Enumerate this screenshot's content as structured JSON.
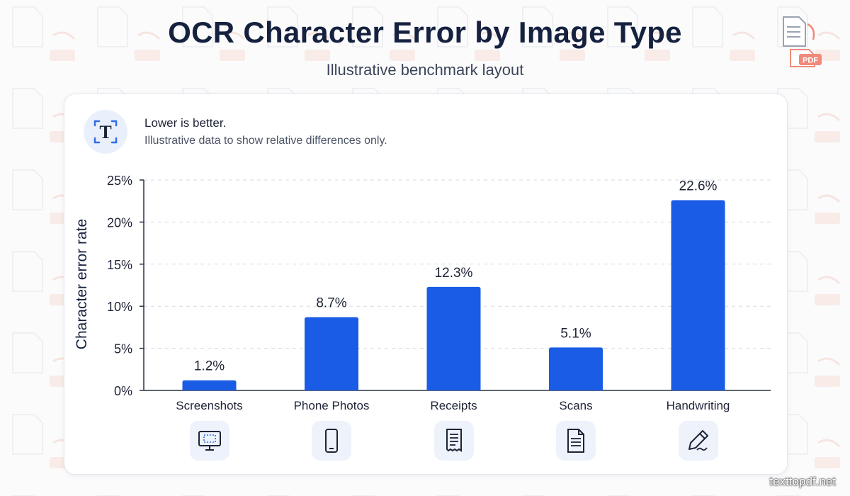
{
  "header": {
    "title": "OCR Character Error by Image Type",
    "subtitle": "Illustrative benchmark layout",
    "logo_badge": "PDF"
  },
  "note": {
    "icon_glyph": "T",
    "title": "Lower is better.",
    "text": "Illustrative data to show relative differences only."
  },
  "chart_data": {
    "type": "bar",
    "categories": [
      "Screenshots",
      "Phone Photos",
      "Receipts",
      "Scans",
      "Handwriting"
    ],
    "values": [
      1.2,
      8.7,
      12.3,
      5.1,
      22.6
    ],
    "value_labels": [
      "1.2%",
      "8.7%",
      "12.3%",
      "5.1%",
      "22.6%"
    ],
    "title": "OCR Character Error by Image Type",
    "subtitle": "Illustrative benchmark layout",
    "xlabel": "",
    "ylabel": "Character error rate",
    "ylim": [
      0,
      25
    ],
    "yticks": [
      0,
      5,
      10,
      15,
      20,
      25
    ],
    "ytick_labels": [
      "0%",
      "5%",
      "10%",
      "15%",
      "20%",
      "25%"
    ],
    "grid": true,
    "bar_color": "#1a5ce6"
  },
  "category_icons": [
    "screenshot-monitor-icon",
    "phone-icon",
    "receipt-icon",
    "document-icon",
    "pen-icon"
  ],
  "colors": {
    "bar": "#1a5ce6",
    "title": "#15213f",
    "icon_stroke": "#1d2436",
    "icon_bg": "#edf2fb",
    "logo_badge": "#f08a7a"
  },
  "watermark": "texttopdf.net"
}
